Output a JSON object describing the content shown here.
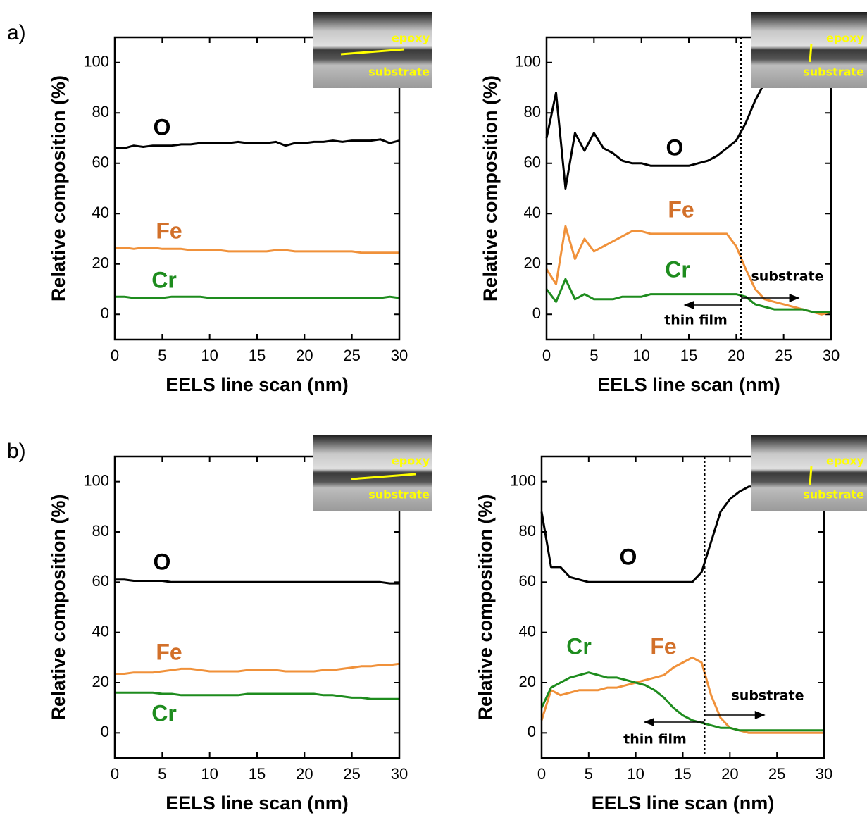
{
  "panel_labels": [
    "a)",
    "b)"
  ],
  "chart_data": [
    {
      "type": "line",
      "ylabel": "Relative composition (%)",
      "xlabel": "EELS line scan (nm)",
      "xlim": [
        0,
        30
      ],
      "ylim": [
        -10,
        110
      ],
      "xticks": [
        0,
        5,
        10,
        15,
        20,
        25,
        30
      ],
      "yticks": [
        0,
        20,
        40,
        60,
        80,
        100
      ],
      "inset_labels": [
        "epoxy",
        "substrate"
      ],
      "x": [
        0,
        1,
        2,
        3,
        4,
        5,
        6,
        7,
        8,
        9,
        10,
        11,
        12,
        13,
        14,
        15,
        16,
        17,
        18,
        19,
        20,
        21,
        22,
        23,
        24,
        25,
        26,
        27,
        28,
        29,
        30
      ],
      "series": [
        {
          "name": "O",
          "color": "#000000",
          "values": [
            66,
            66,
            67,
            66.5,
            67,
            67,
            67,
            67.5,
            67.5,
            68,
            68,
            68,
            68,
            68.5,
            68,
            68,
            68,
            68.5,
            67,
            68,
            68,
            68.5,
            68.5,
            69,
            68.5,
            69,
            69,
            69,
            69.5,
            68,
            69
          ]
        },
        {
          "name": "Fe",
          "color": "#f0913a",
          "values": [
            26.5,
            26.5,
            26,
            26.5,
            26.5,
            26,
            26,
            26,
            25.5,
            25.5,
            25.5,
            25.5,
            25,
            25,
            25,
            25,
            25,
            25.5,
            25.5,
            25,
            25,
            25,
            25,
            25,
            25,
            25,
            24.5,
            24.5,
            24.5,
            24.5,
            24.5
          ]
        },
        {
          "name": "Cr",
          "color": "#1e8c1e",
          "values": [
            7,
            7,
            6.5,
            6.5,
            6.5,
            6.5,
            7,
            7,
            7,
            7,
            6.5,
            6.5,
            6.5,
            6.5,
            6.5,
            6.5,
            6.5,
            6.5,
            6.5,
            6.5,
            6.5,
            6.5,
            6.5,
            6.5,
            6.5,
            6.5,
            6.5,
            6.5,
            6.5,
            7,
            6.5
          ]
        }
      ]
    },
    {
      "type": "line",
      "ylabel": "Relative composition (%)",
      "xlabel": "EELS line scan (nm)",
      "xlim": [
        0,
        30
      ],
      "ylim": [
        -10,
        110
      ],
      "xticks": [
        0,
        5,
        10,
        15,
        20,
        25,
        30
      ],
      "yticks": [
        0,
        20,
        40,
        60,
        80,
        100
      ],
      "inset_labels": [
        "epoxy",
        "substrate"
      ],
      "divider_x": 20.5,
      "annotations": [
        "thin film",
        "substrate"
      ],
      "x": [
        0,
        1,
        2,
        3,
        4,
        5,
        6,
        7,
        8,
        9,
        10,
        11,
        12,
        13,
        14,
        15,
        16,
        17,
        18,
        19,
        20,
        21,
        22,
        23,
        24,
        25,
        26,
        27,
        28,
        29,
        30
      ],
      "series": [
        {
          "name": "O",
          "color": "#000000",
          "values": [
            70,
            88,
            50,
            72,
            65,
            72,
            66,
            64,
            61,
            60,
            60,
            59,
            59,
            59,
            59,
            59,
            60,
            61,
            63,
            66,
            69,
            76,
            85,
            92,
            97,
            100,
            100,
            100,
            100,
            100,
            100
          ]
        },
        {
          "name": "Fe",
          "color": "#f0913a",
          "values": [
            18,
            12,
            35,
            22,
            30,
            25,
            27,
            29,
            31,
            33,
            33,
            32,
            32,
            32,
            32,
            32,
            32,
            32,
            32,
            32,
            27,
            18,
            10,
            6,
            5,
            4,
            3,
            2,
            1,
            0,
            1
          ]
        },
        {
          "name": "Cr",
          "color": "#1e8c1e",
          "values": [
            10,
            5,
            14,
            6,
            8,
            6,
            6,
            6,
            7,
            7,
            7,
            8,
            8,
            8,
            8,
            8,
            8,
            8,
            8,
            8,
            8,
            7,
            4,
            3,
            2,
            2,
            2,
            2,
            1,
            1,
            1
          ]
        }
      ]
    },
    {
      "type": "line",
      "ylabel": "Relative composition (%)",
      "xlabel": "EELS line scan (nm)",
      "xlim": [
        0,
        30
      ],
      "ylim": [
        -10,
        110
      ],
      "xticks": [
        0,
        5,
        10,
        15,
        20,
        25,
        30
      ],
      "yticks": [
        0,
        20,
        40,
        60,
        80,
        100
      ],
      "inset_labels": [
        "epoxy",
        "substrate"
      ],
      "x": [
        0,
        1,
        2,
        3,
        4,
        5,
        6,
        7,
        8,
        9,
        10,
        11,
        12,
        13,
        14,
        15,
        16,
        17,
        18,
        19,
        20,
        21,
        22,
        23,
        24,
        25,
        26,
        27,
        28,
        29,
        30
      ],
      "series": [
        {
          "name": "O",
          "color": "#000000",
          "values": [
            61,
            61,
            60.5,
            60.5,
            60.5,
            60.5,
            60,
            60,
            60,
            60,
            60,
            60,
            60,
            60,
            60,
            60,
            60,
            60,
            60,
            60,
            60,
            60,
            60,
            60,
            60,
            60,
            60,
            60,
            60,
            59.5,
            59.5
          ]
        },
        {
          "name": "Fe",
          "color": "#f0913a",
          "values": [
            23.5,
            23.5,
            24,
            24,
            24,
            24.5,
            25,
            25.5,
            25.5,
            25,
            24.5,
            24.5,
            24.5,
            24.5,
            25,
            25,
            25,
            25,
            24.5,
            24.5,
            24.5,
            24.5,
            25,
            25,
            25.5,
            26,
            26.5,
            26.5,
            27,
            27,
            27.5
          ]
        },
        {
          "name": "Cr",
          "color": "#1e8c1e",
          "values": [
            16,
            16,
            16,
            16,
            16,
            15.5,
            15.5,
            15,
            15,
            15,
            15,
            15,
            15,
            15,
            15.5,
            15.5,
            15.5,
            15.5,
            15.5,
            15.5,
            15.5,
            15.5,
            15,
            15,
            14.5,
            14,
            14,
            13.5,
            13.5,
            13.5,
            13.5
          ]
        }
      ]
    },
    {
      "type": "line",
      "ylabel": "Relative composition (%)",
      "xlabel": "EELS line scan (nm)",
      "xlim": [
        0,
        30
      ],
      "ylim": [
        -10,
        110
      ],
      "xticks": [
        0,
        5,
        10,
        15,
        20,
        25,
        30
      ],
      "yticks": [
        0,
        20,
        40,
        60,
        80,
        100
      ],
      "inset_labels": [
        "epoxy",
        "substrate"
      ],
      "divider_x": 17.3,
      "annotations": [
        "thin film",
        "substrate"
      ],
      "x": [
        0,
        1,
        2,
        3,
        4,
        5,
        6,
        7,
        8,
        9,
        10,
        11,
        12,
        13,
        14,
        15,
        16,
        17,
        18,
        19,
        20,
        21,
        22,
        23,
        24,
        25,
        26,
        27,
        28,
        29,
        30
      ],
      "series": [
        {
          "name": "O",
          "color": "#000000",
          "values": [
            88,
            66,
            66,
            62,
            61,
            60,
            60,
            60,
            60,
            60,
            60,
            60,
            60,
            60,
            60,
            60,
            60,
            64,
            76,
            88,
            93,
            96,
            98,
            98,
            98,
            98,
            98,
            98,
            98,
            98,
            98
          ]
        },
        {
          "name": "Fe",
          "color": "#f0913a",
          "values": [
            5,
            17,
            15,
            16,
            17,
            17,
            17,
            18,
            18,
            19,
            20,
            21,
            22,
            23,
            26,
            28,
            30,
            28,
            15,
            6,
            2,
            1,
            0,
            0,
            0,
            0,
            0,
            0,
            0,
            0,
            0
          ]
        },
        {
          "name": "Cr",
          "color": "#1e8c1e",
          "values": [
            10,
            18,
            20,
            22,
            23,
            24,
            23,
            22,
            22,
            21,
            20,
            19,
            17,
            14,
            10,
            7,
            5,
            4,
            3,
            2,
            2,
            1,
            1,
            1,
            1,
            1,
            1,
            1,
            1,
            1,
            1
          ]
        }
      ]
    }
  ]
}
